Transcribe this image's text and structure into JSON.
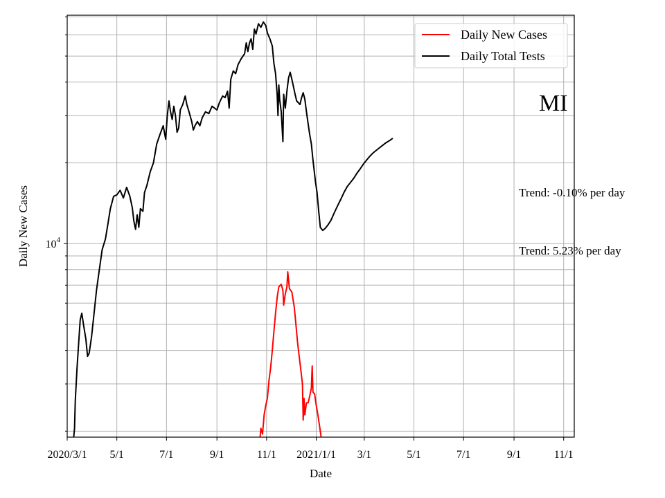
{
  "chart_data": {
    "type": "line",
    "title": "",
    "xlabel": "Date",
    "ylabel": "Daily New Cases",
    "y_scale": "log",
    "grid": true,
    "legend_position": "top-right",
    "xlim": [
      "2020-03-01",
      "2021-11-14"
    ],
    "ylim": [
      1900,
      71000
    ],
    "x_ticks": [
      {
        "date": "2020-03-01",
        "label": "2020/3/1"
      },
      {
        "date": "2020-05-01",
        "label": "5/1"
      },
      {
        "date": "2020-07-01",
        "label": "7/1"
      },
      {
        "date": "2020-09-01",
        "label": "9/1"
      },
      {
        "date": "2020-11-01",
        "label": "11/1"
      },
      {
        "date": "2021-01-01",
        "label": "2021/1/1"
      },
      {
        "date": "2021-03-01",
        "label": "3/1"
      },
      {
        "date": "2021-05-01",
        "label": "5/1"
      },
      {
        "date": "2021-07-01",
        "label": "7/1"
      },
      {
        "date": "2021-09-01",
        "label": "9/1"
      },
      {
        "date": "2021-11-01",
        "label": "11/1"
      }
    ],
    "y_ticks": [
      {
        "value": 10000,
        "base": "10",
        "exp": "4"
      }
    ],
    "state_label": "MI",
    "annotations": [
      {
        "text": "Trend: -0.10% per day",
        "x": "2021-09-07",
        "y": 15000
      },
      {
        "text": "Trend: 5.23% per day",
        "x": "2021-09-07",
        "y": 9100
      }
    ],
    "series": [
      {
        "name": "Daily New Cases",
        "color": "#ff0000",
        "points": [
          [
            "2020-10-24",
            1900
          ],
          [
            "2020-10-25",
            2050
          ],
          [
            "2020-10-27",
            1950
          ],
          [
            "2020-10-29",
            2300
          ],
          [
            "2020-10-31",
            2500
          ],
          [
            "2020-11-02",
            2650
          ],
          [
            "2020-11-04",
            3100
          ],
          [
            "2020-11-06",
            3450
          ],
          [
            "2020-11-08",
            4000
          ],
          [
            "2020-11-10",
            4700
          ],
          [
            "2020-11-12",
            5500
          ],
          [
            "2020-11-14",
            6300
          ],
          [
            "2020-11-16",
            6900
          ],
          [
            "2020-11-19",
            7050
          ],
          [
            "2020-11-21",
            6700
          ],
          [
            "2020-11-22",
            5900
          ],
          [
            "2020-11-24",
            6500
          ],
          [
            "2020-11-26",
            6900
          ],
          [
            "2020-11-27",
            7850
          ],
          [
            "2020-11-29",
            6800
          ],
          [
            "2020-12-02",
            6600
          ],
          [
            "2020-12-05",
            5800
          ],
          [
            "2020-12-07",
            5000
          ],
          [
            "2020-12-09",
            4300
          ],
          [
            "2020-12-11",
            3800
          ],
          [
            "2020-12-13",
            3400
          ],
          [
            "2020-12-15",
            3000
          ],
          [
            "2020-12-16",
            2200
          ],
          [
            "2020-12-17",
            2650
          ],
          [
            "2020-12-18",
            2300
          ],
          [
            "2020-12-20",
            2550
          ],
          [
            "2020-12-22",
            2550
          ],
          [
            "2020-12-24",
            2700
          ],
          [
            "2020-12-26",
            2900
          ],
          [
            "2020-12-27",
            3500
          ],
          [
            "2020-12-28",
            2800
          ],
          [
            "2020-12-30",
            2750
          ],
          [
            "2021-01-01",
            2500
          ],
          [
            "2021-01-03",
            2300
          ],
          [
            "2021-01-05",
            2100
          ],
          [
            "2021-01-07",
            1900
          ]
        ],
        "dotted_trend": []
      },
      {
        "name": "Daily Total Tests",
        "color": "#000000",
        "points": [
          [
            "2020-03-09",
            1900
          ],
          [
            "2020-03-10",
            2050
          ],
          [
            "2020-03-11",
            2600
          ],
          [
            "2020-03-13",
            3400
          ],
          [
            "2020-03-15",
            4200
          ],
          [
            "2020-03-17",
            5200
          ],
          [
            "2020-03-19",
            5500
          ],
          [
            "2020-03-21",
            5000
          ],
          [
            "2020-03-24",
            4400
          ],
          [
            "2020-03-26",
            3800
          ],
          [
            "2020-03-28",
            3900
          ],
          [
            "2020-03-31",
            4500
          ],
          [
            "2020-04-03",
            5500
          ],
          [
            "2020-04-06",
            6700
          ],
          [
            "2020-04-09",
            7800
          ],
          [
            "2020-04-13",
            9500
          ],
          [
            "2020-04-17",
            10400
          ],
          [
            "2020-04-20",
            11800
          ],
          [
            "2020-04-23",
            13500
          ],
          [
            "2020-04-27",
            15000
          ],
          [
            "2020-05-01",
            15200
          ],
          [
            "2020-05-05",
            15800
          ],
          [
            "2020-05-09",
            14800
          ],
          [
            "2020-05-13",
            16200
          ],
          [
            "2020-05-17",
            15000
          ],
          [
            "2020-05-20",
            13600
          ],
          [
            "2020-05-22",
            12100
          ],
          [
            "2020-05-24",
            11300
          ],
          [
            "2020-05-26",
            12800
          ],
          [
            "2020-05-28",
            11500
          ],
          [
            "2020-05-30",
            13500
          ],
          [
            "2020-06-02",
            13200
          ],
          [
            "2020-06-04",
            15500
          ],
          [
            "2020-06-07",
            16500
          ],
          [
            "2020-06-11",
            18500
          ],
          [
            "2020-06-15",
            20000
          ],
          [
            "2020-06-19",
            23500
          ],
          [
            "2020-06-23",
            25500
          ],
          [
            "2020-06-27",
            27500
          ],
          [
            "2020-06-30",
            24500
          ],
          [
            "2020-07-02",
            30000
          ],
          [
            "2020-07-04",
            34000
          ],
          [
            "2020-07-06",
            31000
          ],
          [
            "2020-07-08",
            29000
          ],
          [
            "2020-07-10",
            32500
          ],
          [
            "2020-07-12",
            30000
          ],
          [
            "2020-07-14",
            26000
          ],
          [
            "2020-07-16",
            27000
          ],
          [
            "2020-07-18",
            31500
          ],
          [
            "2020-07-21",
            33000
          ],
          [
            "2020-07-24",
            35500
          ],
          [
            "2020-07-26",
            33000
          ],
          [
            "2020-07-28",
            31500
          ],
          [
            "2020-07-30",
            30000
          ],
          [
            "2020-08-01",
            28500
          ],
          [
            "2020-08-03",
            26500
          ],
          [
            "2020-08-05",
            27500
          ],
          [
            "2020-08-08",
            28500
          ],
          [
            "2020-08-11",
            27500
          ],
          [
            "2020-08-14",
            29500
          ],
          [
            "2020-08-18",
            31000
          ],
          [
            "2020-08-22",
            30500
          ],
          [
            "2020-08-26",
            32500
          ],
          [
            "2020-08-29",
            32000
          ],
          [
            "2020-09-01",
            31500
          ],
          [
            "2020-09-04",
            33500
          ],
          [
            "2020-09-08",
            35500
          ],
          [
            "2020-09-11",
            35000
          ],
          [
            "2020-09-14",
            37000
          ],
          [
            "2020-09-16",
            32000
          ],
          [
            "2020-09-18",
            41000
          ],
          [
            "2020-09-21",
            44000
          ],
          [
            "2020-09-24",
            43000
          ],
          [
            "2020-09-27",
            46500
          ],
          [
            "2020-10-01",
            49000
          ],
          [
            "2020-10-05",
            51000
          ],
          [
            "2020-10-07",
            56000
          ],
          [
            "2020-10-09",
            52000
          ],
          [
            "2020-10-11",
            56000
          ],
          [
            "2020-10-13",
            58000
          ],
          [
            "2020-10-15",
            53000
          ],
          [
            "2020-10-17",
            63000
          ],
          [
            "2020-10-19",
            60500
          ],
          [
            "2020-10-22",
            66000
          ],
          [
            "2020-10-25",
            64000
          ],
          [
            "2020-10-28",
            67000
          ],
          [
            "2020-10-31",
            65000
          ],
          [
            "2020-11-02",
            61000
          ],
          [
            "2020-11-05",
            58000
          ],
          [
            "2020-11-08",
            54500
          ],
          [
            "2020-11-10",
            47000
          ],
          [
            "2020-11-12",
            43000
          ],
          [
            "2020-11-14",
            36000
          ],
          [
            "2020-11-15",
            30000
          ],
          [
            "2020-11-16",
            39000
          ],
          [
            "2020-11-17",
            34500
          ],
          [
            "2020-11-19",
            31000
          ],
          [
            "2020-11-21",
            24000
          ],
          [
            "2020-11-22",
            36000
          ],
          [
            "2020-11-24",
            32000
          ],
          [
            "2020-11-26",
            37000
          ],
          [
            "2020-11-28",
            41500
          ],
          [
            "2020-11-30",
            43500
          ],
          [
            "2020-12-02",
            41000
          ],
          [
            "2020-12-04",
            38500
          ],
          [
            "2020-12-06",
            36000
          ],
          [
            "2020-12-08",
            34000
          ],
          [
            "2020-12-10",
            33500
          ],
          [
            "2020-12-12",
            33000
          ],
          [
            "2020-12-14",
            35000
          ],
          [
            "2020-12-16",
            36500
          ],
          [
            "2020-12-18",
            34500
          ],
          [
            "2020-12-20",
            31000
          ],
          [
            "2020-12-22",
            28000
          ],
          [
            "2020-12-24",
            25500
          ],
          [
            "2020-12-26",
            23500
          ],
          [
            "2020-12-28",
            20500
          ],
          [
            "2020-12-31",
            17000
          ],
          [
            "2021-01-02",
            15500
          ],
          [
            "2021-01-04",
            13200
          ],
          [
            "2021-01-06",
            11500
          ],
          [
            "2021-01-09",
            11200
          ],
          [
            "2021-01-12",
            11400
          ],
          [
            "2021-01-15",
            11700
          ],
          [
            "2021-01-19",
            12200
          ],
          [
            "2021-01-23",
            13000
          ],
          [
            "2021-01-27",
            13800
          ],
          [
            "2021-01-31",
            14600
          ],
          [
            "2021-02-04",
            15500
          ],
          [
            "2021-02-08",
            16300
          ],
          [
            "2021-02-12",
            16900
          ],
          [
            "2021-02-16",
            17500
          ],
          [
            "2021-02-20",
            18300
          ],
          [
            "2021-02-24",
            19000
          ],
          [
            "2021-02-28",
            19800
          ],
          [
            "2021-03-04",
            20500
          ],
          [
            "2021-03-08",
            21200
          ],
          [
            "2021-03-12",
            21800
          ],
          [
            "2021-03-16",
            22300
          ],
          [
            "2021-03-20",
            22800
          ],
          [
            "2021-03-24",
            23300
          ],
          [
            "2021-03-28",
            23800
          ],
          [
            "2021-04-01",
            24200
          ],
          [
            "2021-04-05",
            24700
          ]
        ],
        "dotted_trend": []
      }
    ]
  }
}
